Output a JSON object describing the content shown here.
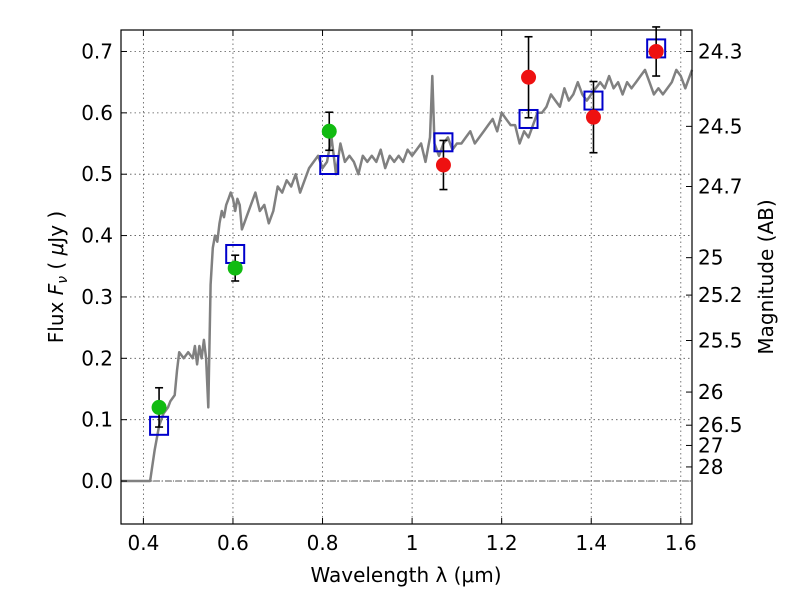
{
  "chart_data": {
    "type": "scatter",
    "xlabel": "Wavelength  λ (μm)",
    "ylabel_left": {
      "prefix": "Flux  ",
      "var": "F",
      "sub": "ν",
      "open": "  ( ",
      "unit_mu": "μ",
      "unit_rest": "Jy )"
    },
    "ylabel_right": "Magnitude (AB)",
    "xlim": [
      0.35,
      1.625
    ],
    "ylim": [
      -0.07,
      0.735
    ],
    "grid": true,
    "x_ticks": [
      {
        "v": 0.4,
        "label": "0.4"
      },
      {
        "v": 0.6,
        "label": "0.6"
      },
      {
        "v": 0.8,
        "label": "0.8"
      },
      {
        "v": 1.0,
        "label": "1"
      },
      {
        "v": 1.2,
        "label": "1.2"
      },
      {
        "v": 1.4,
        "label": "1.4"
      },
      {
        "v": 1.6,
        "label": "1.6"
      }
    ],
    "y_ticks": [
      {
        "v": 0.0,
        "label": "0.0"
      },
      {
        "v": 0.1,
        "label": "0.1"
      },
      {
        "v": 0.2,
        "label": "0.2"
      },
      {
        "v": 0.3,
        "label": "0.3"
      },
      {
        "v": 0.4,
        "label": "0.4"
      },
      {
        "v": 0.5,
        "label": "0.5"
      },
      {
        "v": 0.6,
        "label": "0.6"
      },
      {
        "v": 0.7,
        "label": "0.7"
      }
    ],
    "mag_ticks": [
      {
        "label": "24.3",
        "flux": 0.7
      },
      {
        "label": "24.5",
        "flux": 0.578
      },
      {
        "label": "24.7",
        "flux": 0.48
      },
      {
        "label": "25",
        "flux": 0.364
      },
      {
        "label": "25.2",
        "flux": 0.303
      },
      {
        "label": "25.5",
        "flux": 0.229
      },
      {
        "label": "26",
        "flux": 0.145
      },
      {
        "label": "26.5",
        "flux": 0.091
      },
      {
        "label": "27",
        "flux": 0.058
      },
      {
        "label": "28",
        "flux": 0.023
      }
    ],
    "spectrum": {
      "color": "#808080",
      "x": [
        0.35,
        0.405,
        0.415,
        0.425,
        0.435,
        0.445,
        0.455,
        0.46,
        0.47,
        0.475,
        0.48,
        0.49,
        0.5,
        0.51,
        0.515,
        0.52,
        0.525,
        0.53,
        0.535,
        0.54,
        0.545,
        0.55,
        0.555,
        0.56,
        0.565,
        0.57,
        0.575,
        0.58,
        0.585,
        0.59,
        0.595,
        0.6,
        0.605,
        0.61,
        0.615,
        0.62,
        0.625,
        0.63,
        0.64,
        0.65,
        0.66,
        0.67,
        0.68,
        0.69,
        0.7,
        0.71,
        0.72,
        0.73,
        0.74,
        0.75,
        0.76,
        0.77,
        0.78,
        0.79,
        0.8,
        0.81,
        0.82,
        0.83,
        0.84,
        0.85,
        0.86,
        0.87,
        0.88,
        0.89,
        0.9,
        0.91,
        0.92,
        0.93,
        0.94,
        0.95,
        0.96,
        0.97,
        0.98,
        0.99,
        1.0,
        1.01,
        1.02,
        1.03,
        1.04,
        1.045,
        1.05,
        1.055,
        1.06,
        1.07,
        1.08,
        1.09,
        1.1,
        1.11,
        1.12,
        1.13,
        1.14,
        1.15,
        1.16,
        1.17,
        1.18,
        1.19,
        1.2,
        1.21,
        1.22,
        1.23,
        1.24,
        1.25,
        1.26,
        1.27,
        1.28,
        1.29,
        1.3,
        1.31,
        1.32,
        1.33,
        1.34,
        1.35,
        1.36,
        1.37,
        1.38,
        1.39,
        1.4,
        1.41,
        1.42,
        1.43,
        1.44,
        1.45,
        1.46,
        1.47,
        1.48,
        1.49,
        1.5,
        1.51,
        1.52,
        1.53,
        1.54,
        1.55,
        1.56,
        1.57,
        1.58,
        1.59,
        1.6,
        1.61,
        1.625
      ],
      "y": [
        0.0,
        0.0,
        0.0,
        0.05,
        0.09,
        0.11,
        0.12,
        0.13,
        0.14,
        0.18,
        0.21,
        0.2,
        0.21,
        0.2,
        0.22,
        0.19,
        0.22,
        0.2,
        0.23,
        0.2,
        0.12,
        0.32,
        0.38,
        0.4,
        0.39,
        0.42,
        0.44,
        0.43,
        0.45,
        0.46,
        0.47,
        0.46,
        0.44,
        0.46,
        0.45,
        0.41,
        0.42,
        0.43,
        0.45,
        0.47,
        0.44,
        0.45,
        0.42,
        0.44,
        0.48,
        0.47,
        0.49,
        0.48,
        0.5,
        0.47,
        0.49,
        0.51,
        0.52,
        0.53,
        0.51,
        0.52,
        0.56,
        0.5,
        0.55,
        0.52,
        0.53,
        0.52,
        0.5,
        0.53,
        0.52,
        0.53,
        0.52,
        0.54,
        0.51,
        0.53,
        0.52,
        0.53,
        0.52,
        0.54,
        0.53,
        0.54,
        0.55,
        0.52,
        0.56,
        0.66,
        0.55,
        0.54,
        0.53,
        0.55,
        0.56,
        0.54,
        0.55,
        0.55,
        0.56,
        0.57,
        0.55,
        0.56,
        0.57,
        0.58,
        0.59,
        0.57,
        0.6,
        0.59,
        0.58,
        0.58,
        0.55,
        0.57,
        0.56,
        0.58,
        0.6,
        0.6,
        0.61,
        0.63,
        0.62,
        0.61,
        0.64,
        0.62,
        0.63,
        0.65,
        0.63,
        0.62,
        0.63,
        0.64,
        0.65,
        0.64,
        0.66,
        0.64,
        0.65,
        0.63,
        0.65,
        0.64,
        0.65,
        0.66,
        0.67,
        0.65,
        0.63,
        0.64,
        0.63,
        0.64,
        0.65,
        0.67,
        0.66,
        0.64,
        0.67
      ]
    },
    "filter_points": [
      {
        "x": 0.435,
        "y": 0.09
      },
      {
        "x": 0.605,
        "y": 0.37
      },
      {
        "x": 0.815,
        "y": 0.515
      },
      {
        "x": 1.07,
        "y": 0.552
      },
      {
        "x": 1.26,
        "y": 0.59
      },
      {
        "x": 1.405,
        "y": 0.62
      },
      {
        "x": 1.545,
        "y": 0.705
      }
    ],
    "series": [
      {
        "color": "#11bb11",
        "points": [
          {
            "x": 0.435,
            "y": 0.12,
            "err": 0.032
          },
          {
            "x": 0.605,
            "y": 0.347,
            "err": 0.021
          },
          {
            "x": 0.815,
            "y": 0.57,
            "err": 0.031
          }
        ]
      },
      {
        "color": "#ee1111",
        "points": [
          {
            "x": 1.07,
            "y": 0.515,
            "err": 0.04
          },
          {
            "x": 1.26,
            "y": 0.658,
            "err": 0.066
          },
          {
            "x": 1.405,
            "y": 0.593,
            "err": 0.058
          },
          {
            "x": 1.545,
            "y": 0.7,
            "err": 0.04
          }
        ]
      }
    ],
    "colors": {
      "filter_marker": "#0000cc",
      "zero_line": "#555555"
    }
  }
}
